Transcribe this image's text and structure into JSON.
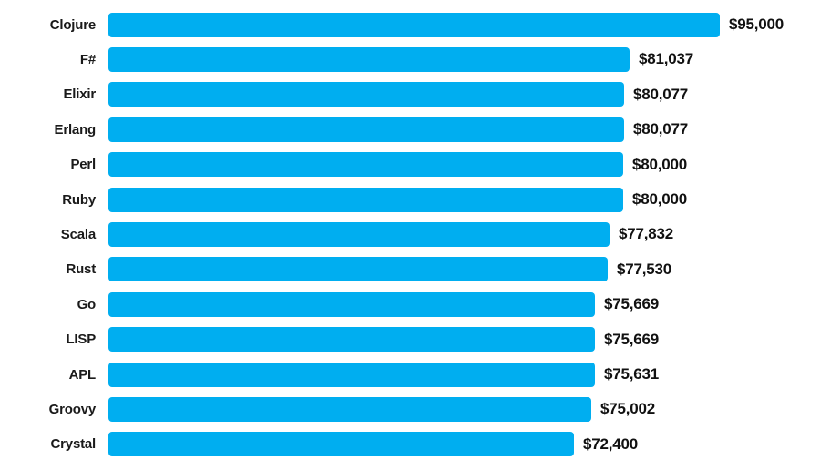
{
  "chart_data": {
    "type": "bar",
    "orientation": "horizontal",
    "title": "",
    "xlabel": "",
    "ylabel": "",
    "categories": [
      "Clojure",
      "F#",
      "Elixir",
      "Erlang",
      "Perl",
      "Ruby",
      "Scala",
      "Rust",
      "Go",
      "LISP",
      "APL",
      "Groovy",
      "Crystal"
    ],
    "values": [
      95000,
      81037,
      80077,
      80077,
      80000,
      80000,
      77832,
      77530,
      75669,
      75669,
      75631,
      75002,
      72400
    ],
    "value_labels": [
      "$95,000",
      "$81,037",
      "$80,077",
      "$80,077",
      "$80,000",
      "$80,000",
      "$77,832",
      "$77,530",
      "$75,669",
      "$75,669",
      "$75,631",
      "$75,002",
      "$72,400"
    ],
    "xlim": [
      0,
      95000
    ],
    "grid": false,
    "legend": null,
    "axes_visible": false,
    "bar_color": "#00AEF0",
    "label_color": "#1a1a1a",
    "value_color": "#111111",
    "background": "#ffffff"
  }
}
